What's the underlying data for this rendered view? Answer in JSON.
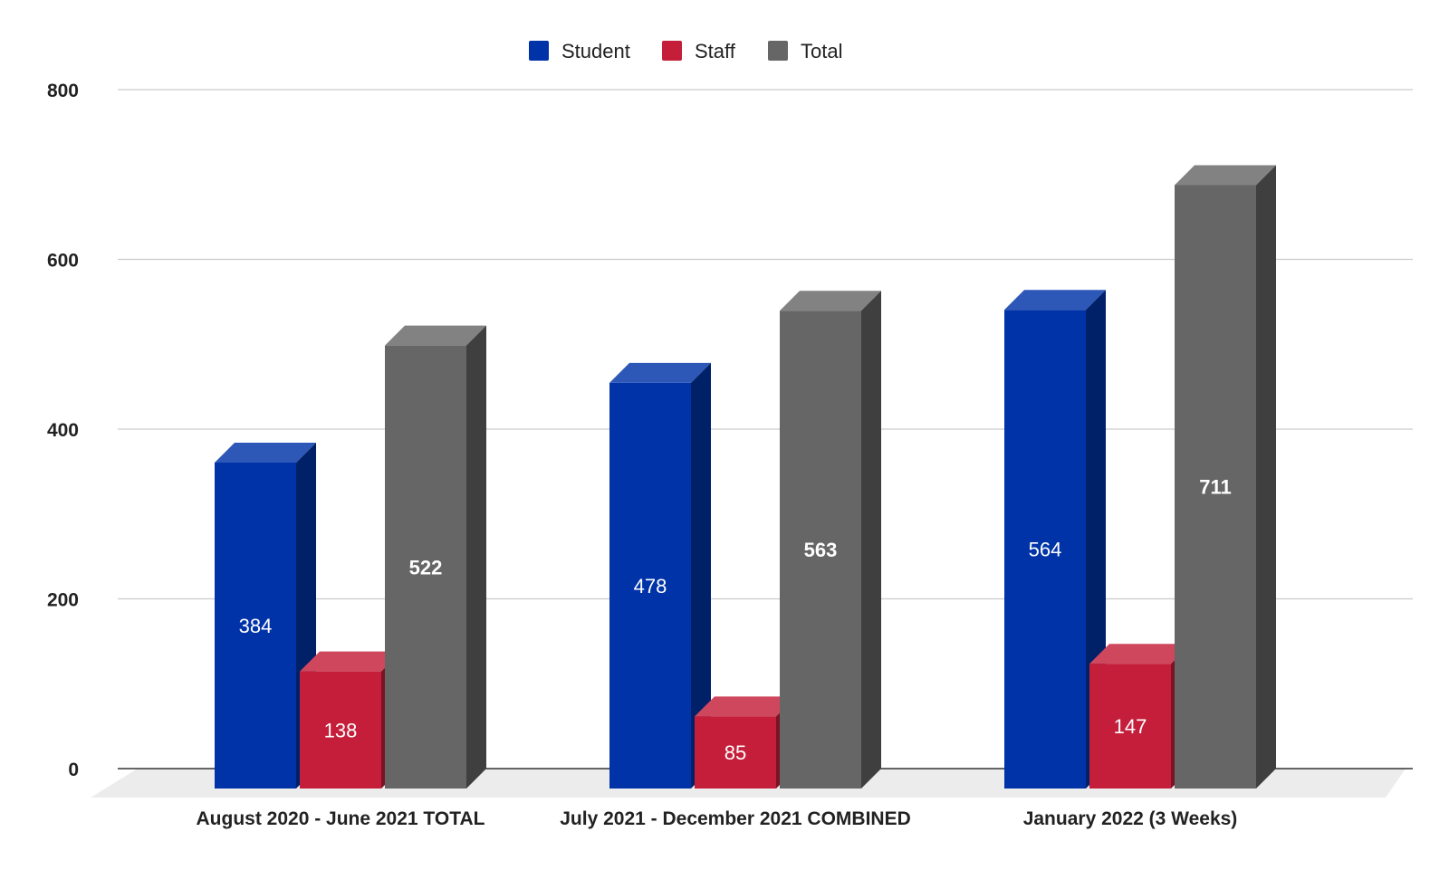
{
  "chart_data": {
    "type": "bar",
    "title": "",
    "xlabel": "",
    "ylabel": "",
    "categories": [
      "August 2020 - June 2021 TOTAL",
      "July 2021 - December 2021 COMBINED",
      "January 2022 (3 Weeks)"
    ],
    "series": [
      {
        "name": "Student",
        "values": [
          384,
          478,
          564
        ],
        "color": "#0033a8",
        "label_bold": false
      },
      {
        "name": "Staff",
        "values": [
          138,
          85,
          147
        ],
        "color": "#c41e3a",
        "label_bold": false
      },
      {
        "name": "Total",
        "values": [
          522,
          563,
          711
        ],
        "color": "#666666",
        "label_bold": true
      }
    ],
    "y_ticks": [
      "0",
      "200",
      "400",
      "600",
      "800"
    ],
    "ylim": [
      0,
      800
    ],
    "grid": true,
    "legend_position": "top-center",
    "style": "3d"
  }
}
